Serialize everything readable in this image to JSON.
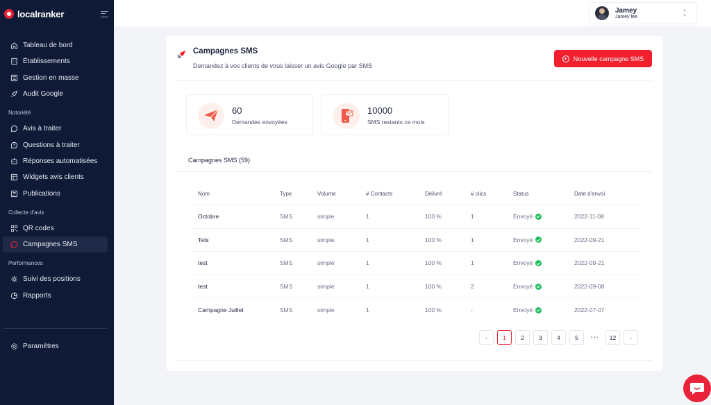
{
  "app": {
    "brand": "localranker"
  },
  "sidebar": {
    "items_main": [
      {
        "label": "Tableau de bord",
        "icon": "home-icon"
      },
      {
        "label": "Établissements",
        "icon": "building-icon"
      },
      {
        "label": "Gestion en masse",
        "icon": "layers-icon"
      },
      {
        "label": "Audit Google",
        "icon": "rocket-icon"
      }
    ],
    "section_notoriete": "Notoriété",
    "items_notoriete": [
      {
        "label": "Avis à traiter",
        "icon": "message-icon"
      },
      {
        "label": "Questions à traiter",
        "icon": "question-icon"
      },
      {
        "label": "Réponses automatisées",
        "icon": "robot-icon"
      },
      {
        "label": "Widgets avis clients",
        "icon": "widget-icon"
      },
      {
        "label": "Publications",
        "icon": "megaphone-icon"
      }
    ],
    "section_collecte": "Collecte d'avis",
    "items_collecte": [
      {
        "label": "QR codes",
        "icon": "qr-icon"
      },
      {
        "label": "Campagnes SMS",
        "icon": "sms-icon"
      }
    ],
    "section_performances": "Performances",
    "items_performances": [
      {
        "label": "Suivi des positions",
        "icon": "target-icon"
      },
      {
        "label": "Rapports",
        "icon": "chart-icon"
      }
    ],
    "settings_label": "Paramètres"
  },
  "user": {
    "name": "Jamey",
    "sub": "Jamey lee"
  },
  "page": {
    "title": "Campagnes SMS",
    "subtitle": "Demandez à vos clients de vous laisser un avis Google par SMS",
    "new_button": "Nouvelle campagne SMS"
  },
  "stats": [
    {
      "value": "60",
      "label": "Demandes envoyées"
    },
    {
      "value": "10000",
      "label": "SMS restants ce mois"
    }
  ],
  "table": {
    "title": "Campagnes SMS (59)",
    "headers": [
      "Nom",
      "Type",
      "Volume",
      "# Contacts",
      "Délivré",
      "# clics",
      "Status",
      "Date d'envoi"
    ],
    "rows": [
      {
        "name": "Octobre",
        "type": "SMS",
        "volume": "simple",
        "contacts": "1",
        "delivered": "100 %",
        "clicks": "1",
        "status": "Envoyé",
        "date": "2022-11-08"
      },
      {
        "name": "Tets",
        "type": "SMS",
        "volume": "simple",
        "contacts": "1",
        "delivered": "100 %",
        "clicks": "1",
        "status": "Envoyé",
        "date": "2022-09-21"
      },
      {
        "name": "test",
        "type": "SMS",
        "volume": "simple",
        "contacts": "1",
        "delivered": "100 %",
        "clicks": "1",
        "status": "Envoyé",
        "date": "2022-09-21"
      },
      {
        "name": "test",
        "type": "SMS",
        "volume": "simple",
        "contacts": "1",
        "delivered": "100 %",
        "clicks": "2",
        "status": "Envoyé",
        "date": "2022-09-08"
      },
      {
        "name": "Campagne Juillet",
        "type": "SMS",
        "volume": "simple",
        "contacts": "1",
        "delivered": "100 %",
        "clicks": "-",
        "status": "Envoyé",
        "date": "2022-07-07"
      }
    ]
  },
  "pagination": {
    "pages": [
      "1",
      "2",
      "3",
      "4",
      "5"
    ],
    "ellipsis": "•••",
    "last": "12",
    "prev": "‹",
    "next": "›",
    "current": "1"
  },
  "colors": {
    "accent": "#f0202f",
    "sidebar": "#0f1a36",
    "success": "#1fbf5f"
  }
}
